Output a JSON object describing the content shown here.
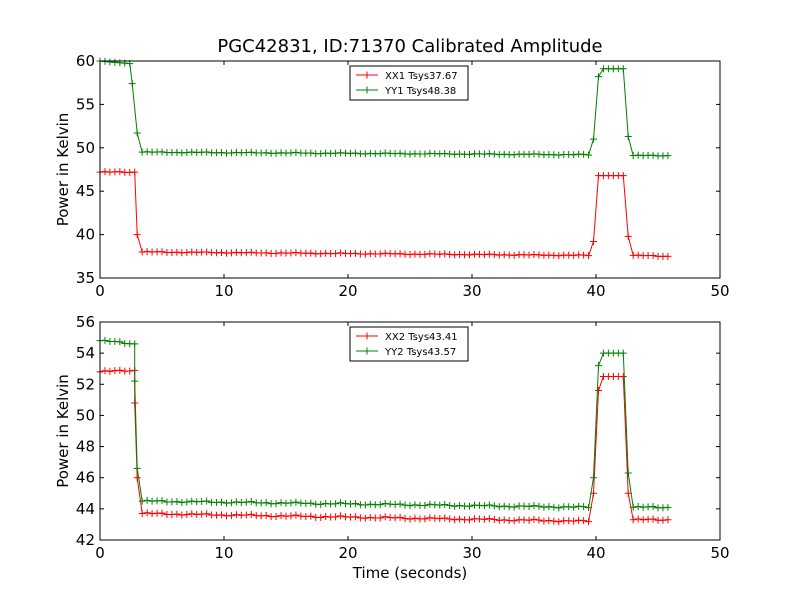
{
  "figure": {
    "title": "PGC42831, ID:71370 Calibrated Amplitude",
    "xlabel": "Time (seconds)"
  },
  "chart_data": [
    {
      "type": "line",
      "ylabel": "Power in Kelvin",
      "xlim": [
        0,
        50
      ],
      "ylim": [
        35,
        60
      ],
      "xticks": [
        "0",
        "10",
        "20",
        "30",
        "40",
        "50"
      ],
      "yticks": [
        "35",
        "40",
        "45",
        "50",
        "55",
        "60"
      ],
      "legend_position": "top-center",
      "series": [
        {
          "name": "XX1 Tsys37.67",
          "color": "#ff0000",
          "segments": [
            {
              "x0": 0.0,
              "x1": 2.6,
              "y0": 47.2,
              "y1": 47.2
            },
            {
              "x0": 3.0,
              "x1": 3.0,
              "y0": 40.0,
              "y1": 40.0
            },
            {
              "x0": 3.4,
              "x1": 39.4,
              "y0": 38.0,
              "y1": 37.6
            },
            {
              "x0": 39.8,
              "x1": 39.8,
              "y0": 39.2,
              "y1": 39.2
            },
            {
              "x0": 40.2,
              "x1": 42.2,
              "y0": 46.8,
              "y1": 46.8
            },
            {
              "x0": 42.6,
              "x1": 42.6,
              "y0": 39.8,
              "y1": 39.8
            },
            {
              "x0": 43.0,
              "x1": 45.8,
              "y0": 37.6,
              "y1": 37.5
            }
          ]
        },
        {
          "name": "YY1 Tsys48.38",
          "color": "#008000",
          "segments": [
            {
              "x0": 0.0,
              "x1": 2.2,
              "y0": 60.0,
              "y1": 59.7
            },
            {
              "x0": 2.6,
              "x1": 2.6,
              "y0": 57.4,
              "y1": 57.4
            },
            {
              "x0": 3.0,
              "x1": 3.0,
              "y0": 51.7,
              "y1": 51.7
            },
            {
              "x0": 3.4,
              "x1": 39.4,
              "y0": 49.5,
              "y1": 49.2
            },
            {
              "x0": 39.8,
              "x1": 39.8,
              "y0": 51.0,
              "y1": 51.0
            },
            {
              "x0": 40.2,
              "x1": 40.2,
              "y0": 58.2,
              "y1": 58.2
            },
            {
              "x0": 40.6,
              "x1": 42.2,
              "y0": 59.1,
              "y1": 59.1
            },
            {
              "x0": 42.6,
              "x1": 42.6,
              "y0": 51.3,
              "y1": 51.3
            },
            {
              "x0": 43.0,
              "x1": 45.8,
              "y0": 49.1,
              "y1": 49.1
            }
          ]
        }
      ]
    },
    {
      "type": "line",
      "ylabel": "Power in Kelvin",
      "xlim": [
        0,
        50
      ],
      "ylim": [
        42,
        56
      ],
      "xticks": [
        "0",
        "10",
        "20",
        "30",
        "40",
        "50"
      ],
      "yticks": [
        "42",
        "44",
        "46",
        "48",
        "50",
        "52",
        "54",
        "56"
      ],
      "legend_position": "top-center",
      "series": [
        {
          "name": "XX2 Tsys43.41",
          "color": "#ff0000",
          "segments": [
            {
              "x0": 0.0,
              "x1": 2.6,
              "y0": 52.8,
              "y1": 52.9
            },
            {
              "x0": 2.8,
              "x1": 2.8,
              "y0": 50.8,
              "y1": 50.8
            },
            {
              "x0": 3.0,
              "x1": 3.0,
              "y0": 46.0,
              "y1": 46.0
            },
            {
              "x0": 3.4,
              "x1": 39.4,
              "y0": 43.7,
              "y1": 43.2
            },
            {
              "x0": 39.8,
              "x1": 39.8,
              "y0": 45.0,
              "y1": 45.0
            },
            {
              "x0": 40.2,
              "x1": 40.2,
              "y0": 51.6,
              "y1": 51.6
            },
            {
              "x0": 40.6,
              "x1": 42.2,
              "y0": 52.5,
              "y1": 52.5
            },
            {
              "x0": 42.6,
              "x1": 42.6,
              "y0": 45.0,
              "y1": 45.0
            },
            {
              "x0": 43.0,
              "x1": 45.8,
              "y0": 43.3,
              "y1": 43.3
            }
          ]
        },
        {
          "name": "YY2 Tsys43.57",
          "color": "#008000",
          "segments": [
            {
              "x0": 0.0,
              "x1": 2.6,
              "y0": 54.8,
              "y1": 54.6
            },
            {
              "x0": 2.8,
              "x1": 2.8,
              "y0": 52.2,
              "y1": 52.2
            },
            {
              "x0": 3.0,
              "x1": 3.0,
              "y0": 46.6,
              "y1": 46.6
            },
            {
              "x0": 3.4,
              "x1": 39.4,
              "y0": 44.5,
              "y1": 44.1
            },
            {
              "x0": 39.8,
              "x1": 39.8,
              "y0": 46.0,
              "y1": 46.0
            },
            {
              "x0": 40.2,
              "x1": 40.2,
              "y0": 53.2,
              "y1": 53.2
            },
            {
              "x0": 40.6,
              "x1": 42.2,
              "y0": 54.0,
              "y1": 54.0
            },
            {
              "x0": 42.6,
              "x1": 42.6,
              "y0": 46.3,
              "y1": 46.3
            },
            {
              "x0": 43.0,
              "x1": 45.8,
              "y0": 44.1,
              "y1": 44.1
            }
          ]
        }
      ]
    }
  ]
}
